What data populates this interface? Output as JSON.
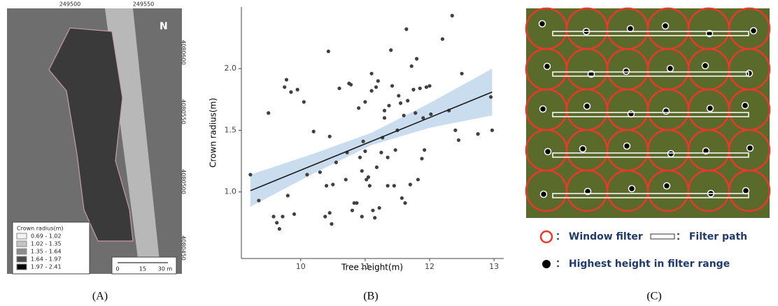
{
  "chart_data": {
    "type": "scatter",
    "x_label": "Tree height(m)",
    "y_label": "Crown radius(m)",
    "xlim": [
      9.08,
      13.15
    ],
    "ylim": [
      0.46,
      2.5
    ],
    "xticks": [
      10,
      11,
      12,
      13
    ],
    "yticks": [
      {
        "value": 1,
        "label": "1.0"
      },
      {
        "value": 1.5,
        "label": "1.5"
      },
      {
        "value": 2,
        "label": "2.0"
      }
    ],
    "color": "#404040",
    "x": [
      9.22,
      9.35,
      9.5,
      9.58,
      9.63,
      9.67,
      9.72,
      9.75,
      9.78,
      9.8,
      9.85,
      9.9,
      9.95,
      10.05,
      10.1,
      10.2,
      10.3,
      10.38,
      10.4,
      10.43,
      10.45,
      10.45,
      10.48,
      10.5,
      10.55,
      10.6,
      10.7,
      10.72,
      10.75,
      10.78,
      10.8,
      10.83,
      10.87,
      10.9,
      10.92,
      10.95,
      10.95,
      10.97,
      11.0,
      11.0,
      11.02,
      11.05,
      11.07,
      11.1,
      11.1,
      11.12,
      11.15,
      11.17,
      11.18,
      11.2,
      11.22,
      11.25,
      11.27,
      11.3,
      11.3,
      11.35,
      11.35,
      11.37,
      11.4,
      11.42,
      11.45,
      11.47,
      11.5,
      11.52,
      11.55,
      11.57,
      11.6,
      11.62,
      11.64,
      11.66,
      11.7,
      11.72,
      11.75,
      11.78,
      11.8,
      11.82,
      11.85,
      11.88,
      11.9,
      11.92,
      11.95,
      12.0,
      12.02,
      12.2,
      12.3,
      12.35,
      12.4,
      12.45,
      12.5,
      12.75,
      12.95,
      12.97
    ],
    "values": [
      1.14,
      0.93,
      1.64,
      0.8,
      0.75,
      0.7,
      0.8,
      1.85,
      1.91,
      0.97,
      1.81,
      0.82,
      1.83,
      1.73,
      1.14,
      1.49,
      1.16,
      0.8,
      1.05,
      2.14,
      0.83,
      1.45,
      0.74,
      1.06,
      1.24,
      1.84,
      1.1,
      1.32,
      1.88,
      1.87,
      0.85,
      0.91,
      0.91,
      1.68,
      1.28,
      1.17,
      0.8,
      1.41,
      1.73,
      1.33,
      1.1,
      1.12,
      1.05,
      1.96,
      1.82,
      0.85,
      0.79,
      1.85,
      1.2,
      1.9,
      0.87,
      1.32,
      1.44,
      1.66,
      1.6,
      1.28,
      1.05,
      1.7,
      2.15,
      1.86,
      1.05,
      1.34,
      1.5,
      1.78,
      1.72,
      0.95,
      1.62,
      0.91,
      2.32,
      1.74,
      1.06,
      2.02,
      1.83,
      1.64,
      2.08,
      1.1,
      1.84,
      1.27,
      1.6,
      1.34,
      1.85,
      1.86,
      1.63,
      2.24,
      1.66,
      2.43,
      1.5,
      1.42,
      1.96,
      1.47,
      1.77,
      1.5
    ],
    "fit": {
      "color": "#1a1a1a",
      "x": [
        9.22,
        12.97
      ],
      "values": [
        1.01,
        1.81
      ]
    },
    "band": {
      "color": "#bcd4ea",
      "x": [
        9.22,
        10.2,
        11.1,
        12.0,
        12.97
      ],
      "lower": [
        0.88,
        1.15,
        1.38,
        1.52,
        1.62
      ],
      "upper": [
        1.14,
        1.31,
        1.48,
        1.72,
        2.0
      ]
    }
  },
  "panel_a": {
    "top_ticks": [
      "249500",
      "249550"
    ],
    "side_ticks": [
      "4080600",
      "4080550",
      "4080500",
      "4080450"
    ],
    "north": "N",
    "legend_title": "Crown radius(m)",
    "legend": [
      {
        "label": "0.69 - 1.02",
        "color": "#f4f4f4"
      },
      {
        "label": "1.02 - 1.35",
        "color": "#c4c4c4"
      },
      {
        "label": "1.35 - 1.64",
        "color": "#8c8c8c"
      },
      {
        "label": "1.64 - 1.97",
        "color": "#4a4a4a"
      },
      {
        "label": "1.97 - 2.41",
        "color": "#050505"
      }
    ],
    "scale": [
      "0",
      "15",
      "30 m"
    ]
  },
  "panel_c": {
    "window": "： Window filter",
    "path": "： Filter path",
    "highest": "： Highest height in filter range"
  },
  "captions": [
    "(A)",
    "(B)",
    "(C)"
  ]
}
